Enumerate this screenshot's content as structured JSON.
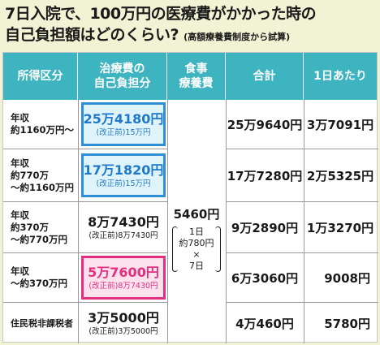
{
  "title": {
    "line1": "7日入院で、100万円の医療費がかかった時の",
    "line2": "自己負担額はどのくらい?",
    "note": "(高額療養費制度から試算)"
  },
  "headers": {
    "income": "所得区分",
    "copay_l1": "治療費の",
    "copay_l2": "自己負担分",
    "meal_l1": "食事",
    "meal_l2": "療養費",
    "total": "合計",
    "perday": "1日あたり"
  },
  "meal": {
    "value": "5460円",
    "l1": "1日",
    "l2": "約780円",
    "l3": "×",
    "l4": "7日"
  },
  "rows": [
    {
      "income_l1": "年収",
      "income_l2": "約1160万円〜",
      "income_l3": "",
      "copay": "25万4180円",
      "before": "(改正前)15万円",
      "total": "25万9640円",
      "perday": "3万7091円",
      "style": "blue"
    },
    {
      "income_l1": "年収",
      "income_l2": "約770万",
      "income_l3": "〜約1160万円",
      "copay": "17万1820円",
      "before": "(改正前)15万円",
      "total": "17万7280円",
      "perday": "2万5325円",
      "style": "blue"
    },
    {
      "income_l1": "年収",
      "income_l2": "約370万",
      "income_l3": "〜約770万円",
      "copay": "8万7430円",
      "before": "(改正前)8万7430円",
      "total": "9万2890円",
      "perday": "1万3270円",
      "style": "plain"
    },
    {
      "income_l1": "年収",
      "income_l2": "〜約370万円",
      "income_l3": "",
      "copay": "5万7600円",
      "before": "(改正前)8万7430円",
      "total": "6万3060円",
      "perday": "9008円",
      "style": "pink"
    },
    {
      "income_l1": "住民税非課税者",
      "income_l2": "",
      "income_l3": "",
      "copay": "3万5000円",
      "before": "(改正前)3万5000円",
      "total": "4万460円",
      "perday": "5780円",
      "style": "plain"
    }
  ]
}
